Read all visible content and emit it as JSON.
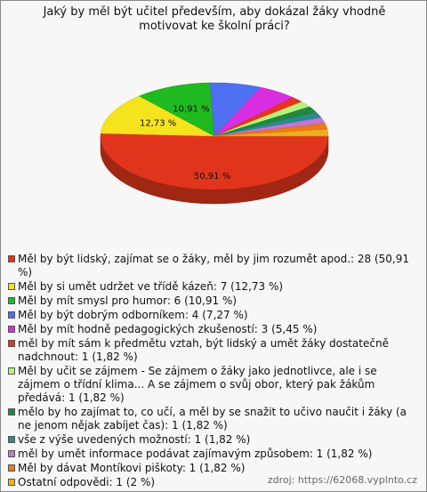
{
  "chart_data": {
    "type": "pie3d",
    "title": "Jaký by měl být učitel především, aby dokázal žáky vhodně motivovat ke školní práci?",
    "categories": [
      "Měl by být lidský, zajímat se o žáky, měl by jim rozumět apod.: 28 (50,91 %)",
      "Měl by si umět udržet ve třídě kázeň: 7 (12,73 %)",
      "Měl by mít smysl pro humor: 6 (10,91 %)",
      "Měl by být dobrým odborníkem: 4 (7,27 %)",
      "Měl by mít hodně pedagogických zkušeností: 3 (5,45 %)",
      "měl by mít sám k předmětu vztah, být lidský a umět žáky dostatečně nadchnout: 1 (1,82 %)",
      "Měl by učit se zájmem - Se zájmem o žáky jako jednotlivce, ale i se zájmem o třídní klima... A se zájmem o svůj obor, který pak žákům předává: 1 (1,82 %)",
      "mělo by ho zajímat to, co učí, a měl by se snažit to učivo naučit i žáky (a ne jenom nějak zabíjet čas): 1 (1,82 %)",
      "vše z výše uvedených možností: 1 (1,82 %)",
      "měl by umět informace podávat zajímavým způsobem: 1 (1,82 %)",
      "Měl by dávat Montíkovi piškoty: 1 (1,82 %)",
      "Ostatní odpovědi: 1 (2 %)"
    ],
    "values": [
      50.91,
      12.73,
      10.91,
      7.27,
      5.45,
      1.82,
      1.82,
      1.82,
      1.82,
      1.82,
      1.82,
      2
    ],
    "value_labels": [
      "50,91 %",
      "12,73 %",
      "10,91 %",
      null,
      null,
      null,
      null,
      null,
      null,
      null,
      null,
      null
    ],
    "colors": [
      "#e0351c",
      "#f5e31e",
      "#1fba1f",
      "#4f6ff2",
      "#d92ee0",
      "#e8361a",
      "#b6f27a",
      "#1f8a3e",
      "#2c8a8c",
      "#c277d4",
      "#ef7a12",
      "#f0ad1e"
    ],
    "source": "zdroj: https://62068.vyplnto.cz"
  }
}
